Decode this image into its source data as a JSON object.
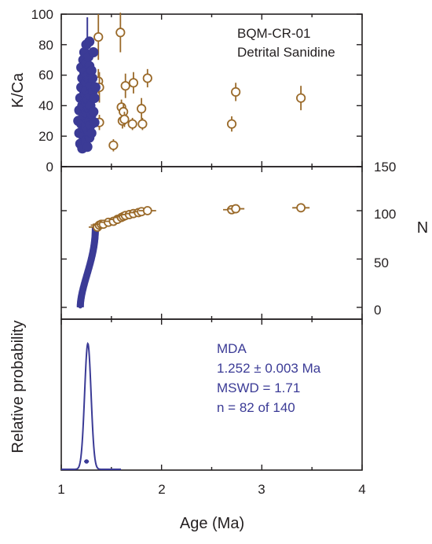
{
  "colors": {
    "accepted": "#3b3b96",
    "rejected": "#9a6a2a",
    "axis": "#231f20"
  },
  "sample": {
    "name": "BQM-CR-01",
    "material": "Detrital Sanidine"
  },
  "mda": {
    "label": "MDA",
    "age": "1.252 ± 0.003 Ma",
    "mswd": "MSWD = 1.71",
    "n": "n = 82 of 140"
  },
  "chart_data": [
    {
      "type": "scatter",
      "panel": "top",
      "ylabel": "K/Ca",
      "xlabel": "",
      "xlim": [
        1,
        4
      ],
      "ylim": [
        0,
        100
      ],
      "yticks": [
        "0",
        "20",
        "40",
        "60",
        "80",
        "100"
      ],
      "series": [
        {
          "style": "accepted",
          "points": [
            {
              "x": 1.17,
              "y": 30
            },
            {
              "x": 1.18,
              "y": 37
            },
            {
              "x": 1.18,
              "y": 22
            },
            {
              "x": 1.19,
              "y": 45
            },
            {
              "x": 1.19,
              "y": 15
            },
            {
              "x": 1.2,
              "y": 52
            },
            {
              "x": 1.2,
              "y": 28
            },
            {
              "x": 1.2,
              "y": 65
            },
            {
              "x": 1.21,
              "y": 12
            },
            {
              "x": 1.21,
              "y": 40
            },
            {
              "x": 1.21,
              "y": 58
            },
            {
              "x": 1.22,
              "y": 70
            },
            {
              "x": 1.22,
              "y": 33
            },
            {
              "x": 1.22,
              "y": 20
            },
            {
              "x": 1.23,
              "y": 48
            },
            {
              "x": 1.23,
              "y": 62
            },
            {
              "x": 1.23,
              "y": 75
            },
            {
              "x": 1.24,
              "y": 26
            },
            {
              "x": 1.24,
              "y": 42
            },
            {
              "x": 1.24,
              "y": 55
            },
            {
              "x": 1.24,
              "y": 17
            },
            {
              "x": 1.25,
              "y": 68
            },
            {
              "x": 1.25,
              "y": 35
            },
            {
              "x": 1.25,
              "y": 80
            },
            {
              "x": 1.25,
              "y": 50
            },
            {
              "x": 1.26,
              "y": 24
            },
            {
              "x": 1.26,
              "y": 60
            },
            {
              "x": 1.26,
              "y": 44
            },
            {
              "x": 1.26,
              "y": 13
            },
            {
              "x": 1.27,
              "y": 72
            },
            {
              "x": 1.27,
              "y": 38
            },
            {
              "x": 1.27,
              "y": 57
            },
            {
              "x": 1.27,
              "y": 30
            },
            {
              "x": 1.28,
              "y": 66
            },
            {
              "x": 1.28,
              "y": 19
            },
            {
              "x": 1.28,
              "y": 47
            },
            {
              "x": 1.28,
              "y": 82
            },
            {
              "x": 1.29,
              "y": 53
            },
            {
              "x": 1.29,
              "y": 27
            },
            {
              "x": 1.29,
              "y": 40
            },
            {
              "x": 1.3,
              "y": 63
            },
            {
              "x": 1.3,
              "y": 34
            },
            {
              "x": 1.3,
              "y": 22
            },
            {
              "x": 1.31,
              "y": 49
            },
            {
              "x": 1.31,
              "y": 58
            },
            {
              "x": 1.32,
              "y": 36
            },
            {
              "x": 1.32,
              "y": 75
            },
            {
              "x": 1.33,
              "y": 45
            },
            {
              "x": 1.33,
              "y": 29
            },
            {
              "x": 1.34,
              "y": 52
            }
          ]
        },
        {
          "style": "rejected",
          "points": [
            {
              "x": 1.37,
              "y": 85,
              "err": 15
            },
            {
              "x": 1.37,
              "y": 56,
              "err": 8
            },
            {
              "x": 1.38,
              "y": 52,
              "err": 10
            },
            {
              "x": 1.38,
              "y": 29,
              "err": 5
            },
            {
              "x": 1.52,
              "y": 14,
              "err": 4
            },
            {
              "x": 1.59,
              "y": 88,
              "err": 13
            },
            {
              "x": 1.6,
              "y": 39,
              "err": 5
            },
            {
              "x": 1.61,
              "y": 30,
              "err": 5
            },
            {
              "x": 1.62,
              "y": 36,
              "err": 5
            },
            {
              "x": 1.63,
              "y": 31,
              "err": 5
            },
            {
              "x": 1.64,
              "y": 53,
              "err": 8
            },
            {
              "x": 1.71,
              "y": 28,
              "err": 4
            },
            {
              "x": 1.72,
              "y": 55,
              "err": 7
            },
            {
              "x": 1.8,
              "y": 38,
              "err": 7
            },
            {
              "x": 1.81,
              "y": 28,
              "err": 4
            },
            {
              "x": 1.86,
              "y": 58,
              "err": 6
            },
            {
              "x": 2.7,
              "y": 28,
              "err": 5
            },
            {
              "x": 2.74,
              "y": 49,
              "err": 6
            },
            {
              "x": 3.39,
              "y": 45,
              "err": 8
            }
          ]
        }
      ]
    },
    {
      "type": "scatter",
      "panel": "middle",
      "ylabel": "N",
      "xlabel": "",
      "xlim": [
        1,
        4
      ],
      "ylim": [
        -5,
        150
      ],
      "yticks": [
        "0",
        "50",
        "100",
        "150"
      ],
      "accepted_count": 82,
      "accepted_age_range": [
        1.19,
        1.34
      ],
      "rejected_points": [
        {
          "x": 1.36,
          "y": 83
        },
        {
          "x": 1.38,
          "y": 85
        },
        {
          "x": 1.4,
          "y": 86
        },
        {
          "x": 1.42,
          "y": 86
        },
        {
          "x": 1.47,
          "y": 88
        },
        {
          "x": 1.52,
          "y": 89
        },
        {
          "x": 1.56,
          "y": 91
        },
        {
          "x": 1.6,
          "y": 93
        },
        {
          "x": 1.62,
          "y": 94
        },
        {
          "x": 1.64,
          "y": 95
        },
        {
          "x": 1.68,
          "y": 96
        },
        {
          "x": 1.72,
          "y": 97
        },
        {
          "x": 1.77,
          "y": 98
        },
        {
          "x": 1.8,
          "y": 99
        },
        {
          "x": 1.86,
          "y": 100
        },
        {
          "x": 2.7,
          "y": 101
        },
        {
          "x": 2.74,
          "y": 102
        },
        {
          "x": 3.39,
          "y": 103
        }
      ]
    },
    {
      "type": "line",
      "panel": "bottom",
      "ylabel": "Relative probability",
      "xlabel": "Age (Ma)",
      "xlim": [
        1,
        4
      ],
      "xticks": [
        "1",
        "2",
        "3",
        "4"
      ],
      "peak_age": 1.265,
      "peak_sigma": 0.032,
      "mda_age": 1.252
    }
  ]
}
